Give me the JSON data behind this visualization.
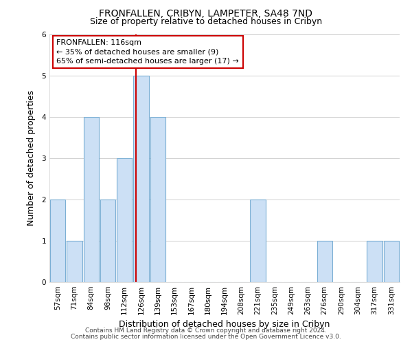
{
  "title": "FRONFALLEN, CRIBYN, LAMPETER, SA48 7ND",
  "subtitle": "Size of property relative to detached houses in Cribyn",
  "xlabel": "Distribution of detached houses by size in Cribyn",
  "ylabel": "Number of detached properties",
  "bar_labels": [
    "57sqm",
    "71sqm",
    "84sqm",
    "98sqm",
    "112sqm",
    "126sqm",
    "139sqm",
    "153sqm",
    "167sqm",
    "180sqm",
    "194sqm",
    "208sqm",
    "221sqm",
    "235sqm",
    "249sqm",
    "263sqm",
    "276sqm",
    "290sqm",
    "304sqm",
    "317sqm",
    "331sqm"
  ],
  "bar_values": [
    2,
    1,
    4,
    2,
    3,
    5,
    4,
    0,
    0,
    0,
    0,
    0,
    2,
    0,
    0,
    0,
    1,
    0,
    0,
    1,
    1
  ],
  "bar_color": "#cce0f5",
  "bar_edge_color": "#7bafd4",
  "vline_x": 4.67,
  "vline_color": "#cc0000",
  "annotation_text": "FRONFALLEN: 116sqm\n← 35% of detached houses are smaller (9)\n65% of semi-detached houses are larger (17) →",
  "annotation_box_color": "#ffffff",
  "annotation_box_edge": "#cc0000",
  "ylim": [
    0,
    6
  ],
  "yticks": [
    0,
    1,
    2,
    3,
    4,
    5,
    6
  ],
  "footer1": "Contains HM Land Registry data © Crown copyright and database right 2024.",
  "footer2": "Contains public sector information licensed under the Open Government Licence v3.0.",
  "title_fontsize": 10,
  "subtitle_fontsize": 9,
  "axis_label_fontsize": 9,
  "tick_fontsize": 7.5,
  "footer_fontsize": 6.5,
  "annotation_fontsize": 8
}
